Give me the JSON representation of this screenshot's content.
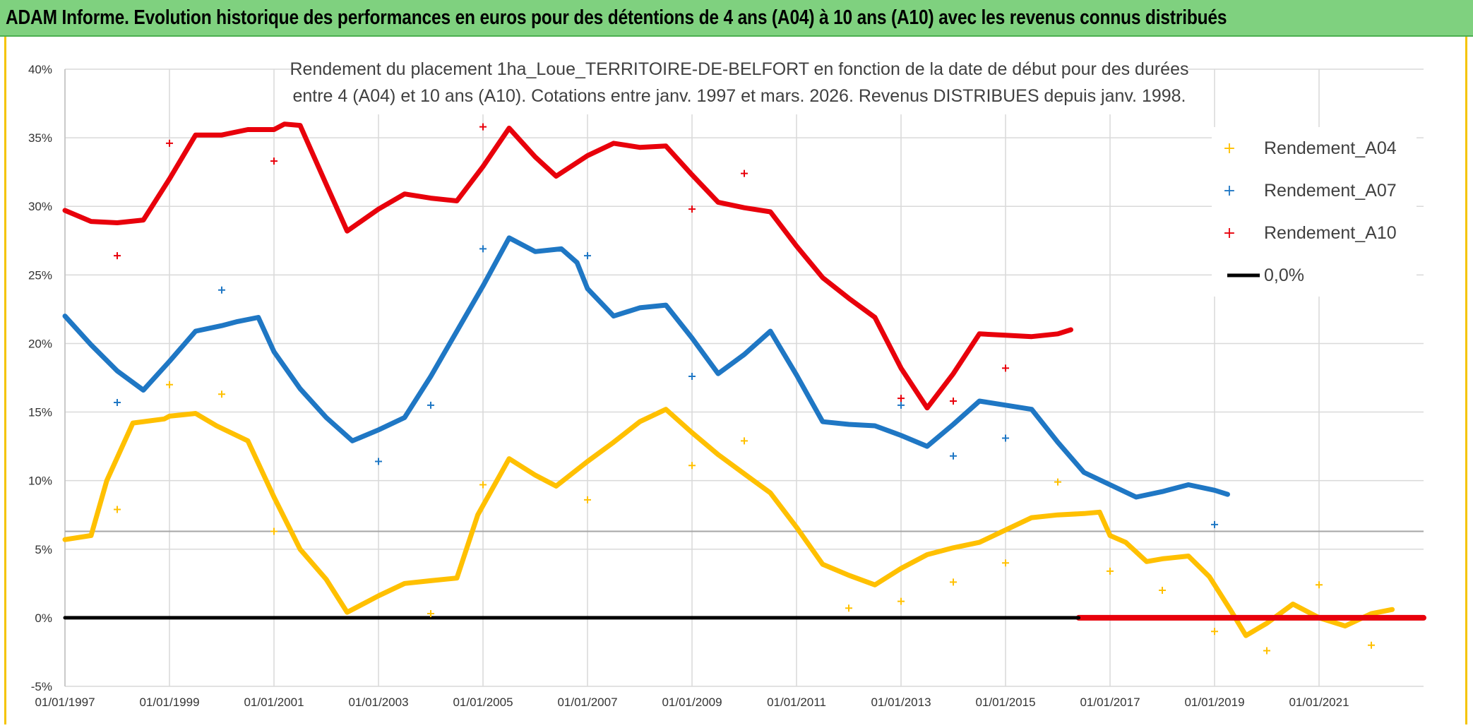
{
  "header": {
    "title": "ADAM Informe. Evolution historique des performances en euros pour des détentions de 4 ans (A04) à 10 ans (A10) avec les revenus connus distribués"
  },
  "colors": {
    "banner": "#7fd17f",
    "a04": "#FFC000",
    "a07": "#1F77C4",
    "a10": "#E8000B",
    "zero": "#000000",
    "grid": "#d9d9d9"
  },
  "chart_data": {
    "type": "line",
    "subtitle_line1": "Rendement du placement 1ha_Loue_TERRITOIRE-DE-BELFORT en fonction de la date de début pour des durées",
    "subtitle_line2": "entre 4 (A04) et 10 ans (A10). Cotations entre janv. 1997 et mars. 2026. Revenus DISTRIBUES depuis janv. 1998.",
    "ylim": [
      -5,
      40
    ],
    "xlim": [
      1997.0,
      2023.0
    ],
    "y_ticks": [
      "-5%",
      "0%",
      "5%",
      "10%",
      "15%",
      "20%",
      "25%",
      "30%",
      "35%",
      "40%"
    ],
    "y_tick_values": [
      -5,
      0,
      5,
      10,
      15,
      20,
      25,
      30,
      35,
      40
    ],
    "x_ticks": [
      "01/01/1997",
      "01/01/1999",
      "01/01/2001",
      "01/01/2003",
      "01/01/2005",
      "01/01/2007",
      "01/01/2009",
      "01/01/2011",
      "01/01/2013",
      "01/01/2015",
      "01/01/2017",
      "01/01/2019",
      "01/01/2021"
    ],
    "x_tick_values": [
      1997,
      1999,
      2001,
      2003,
      2005,
      2007,
      2009,
      2011,
      2013,
      2015,
      2017,
      2019,
      2021
    ],
    "reference_line_value": 6.3,
    "legend": [
      "Rendement_A04",
      "Rendement_A07",
      "Rendement_A10",
      "0,0%"
    ],
    "series": [
      {
        "name": "Rendement_A04",
        "points": [
          [
            1997.0,
            5.7
          ],
          [
            1997.5,
            6.0
          ],
          [
            1997.8,
            10.0
          ],
          [
            1998.3,
            14.2
          ],
          [
            1998.9,
            14.5
          ],
          [
            1999.0,
            14.7
          ],
          [
            1999.5,
            14.9
          ],
          [
            1999.9,
            14.0
          ],
          [
            2000.5,
            12.9
          ],
          [
            2001.0,
            8.8
          ],
          [
            2001.5,
            5.0
          ],
          [
            2002.0,
            2.8
          ],
          [
            2002.4,
            0.4
          ],
          [
            2002.8,
            1.2
          ],
          [
            2003.0,
            1.6
          ],
          [
            2003.5,
            2.5
          ],
          [
            2004.0,
            2.7
          ],
          [
            2004.5,
            2.9
          ],
          [
            2004.9,
            7.5
          ],
          [
            2005.5,
            11.6
          ],
          [
            2006.0,
            10.4
          ],
          [
            2006.4,
            9.6
          ],
          [
            2007.0,
            11.4
          ],
          [
            2007.5,
            12.8
          ],
          [
            2008.0,
            14.3
          ],
          [
            2008.5,
            15.2
          ],
          [
            2009.0,
            13.5
          ],
          [
            2009.5,
            11.9
          ],
          [
            2010.0,
            10.5
          ],
          [
            2010.5,
            9.1
          ],
          [
            2011.0,
            6.6
          ],
          [
            2011.5,
            3.9
          ],
          [
            2012.0,
            3.1
          ],
          [
            2012.5,
            2.4
          ],
          [
            2013.0,
            3.6
          ],
          [
            2013.5,
            4.6
          ],
          [
            2014.0,
            5.1
          ],
          [
            2014.5,
            5.5
          ],
          [
            2015.0,
            6.4
          ],
          [
            2015.5,
            7.3
          ],
          [
            2016.0,
            7.5
          ],
          [
            2016.5,
            7.6
          ],
          [
            2016.8,
            7.7
          ],
          [
            2017.0,
            6.0
          ],
          [
            2017.3,
            5.5
          ],
          [
            2017.7,
            4.1
          ],
          [
            2018.0,
            4.3
          ],
          [
            2018.5,
            4.5
          ],
          [
            2018.9,
            3.0
          ],
          [
            2019.3,
            0.6
          ],
          [
            2019.6,
            -1.3
          ],
          [
            2020.0,
            -0.4
          ],
          [
            2020.5,
            1.0
          ],
          [
            2021.0,
            0.0
          ],
          [
            2021.5,
            -0.6
          ],
          [
            2022.0,
            0.3
          ],
          [
            2022.4,
            0.6
          ]
        ]
      },
      {
        "name": "Rendement_A07",
        "points": [
          [
            1997.0,
            22.0
          ],
          [
            1997.5,
            19.9
          ],
          [
            1998.0,
            18.0
          ],
          [
            1998.5,
            16.6
          ],
          [
            1999.0,
            18.7
          ],
          [
            1999.5,
            20.9
          ],
          [
            2000.0,
            21.3
          ],
          [
            2000.3,
            21.6
          ],
          [
            2000.7,
            21.9
          ],
          [
            2001.0,
            19.4
          ],
          [
            2001.5,
            16.7
          ],
          [
            2002.0,
            14.6
          ],
          [
            2002.5,
            12.9
          ],
          [
            2003.0,
            13.7
          ],
          [
            2003.5,
            14.6
          ],
          [
            2004.0,
            17.6
          ],
          [
            2004.5,
            20.9
          ],
          [
            2005.0,
            24.2
          ],
          [
            2005.5,
            27.7
          ],
          [
            2006.0,
            26.7
          ],
          [
            2006.5,
            26.9
          ],
          [
            2006.8,
            25.9
          ],
          [
            2007.0,
            24.0
          ],
          [
            2007.5,
            22.0
          ],
          [
            2008.0,
            22.6
          ],
          [
            2008.5,
            22.8
          ],
          [
            2009.0,
            20.4
          ],
          [
            2009.5,
            17.8
          ],
          [
            2010.0,
            19.2
          ],
          [
            2010.5,
            20.9
          ],
          [
            2011.0,
            17.7
          ],
          [
            2011.5,
            14.3
          ],
          [
            2012.0,
            14.1
          ],
          [
            2012.5,
            14.0
          ],
          [
            2013.0,
            13.3
          ],
          [
            2013.5,
            12.5
          ],
          [
            2014.0,
            14.1
          ],
          [
            2014.5,
            15.8
          ],
          [
            2015.0,
            15.5
          ],
          [
            2015.5,
            15.2
          ],
          [
            2016.0,
            12.8
          ],
          [
            2016.5,
            10.6
          ],
          [
            2017.0,
            9.7
          ],
          [
            2017.5,
            8.8
          ],
          [
            2018.0,
            9.2
          ],
          [
            2018.5,
            9.7
          ],
          [
            2019.0,
            9.3
          ],
          [
            2019.25,
            9.0
          ]
        ]
      },
      {
        "name": "Rendement_A10",
        "points": [
          [
            1997.0,
            29.7
          ],
          [
            1997.5,
            28.9
          ],
          [
            1998.0,
            28.8
          ],
          [
            1998.5,
            29.0
          ],
          [
            1999.0,
            32.0
          ],
          [
            1999.5,
            35.2
          ],
          [
            2000.0,
            35.2
          ],
          [
            2000.5,
            35.6
          ],
          [
            2001.0,
            35.6
          ],
          [
            2001.2,
            36.0
          ],
          [
            2001.5,
            35.9
          ],
          [
            2002.0,
            31.6
          ],
          [
            2002.4,
            28.2
          ],
          [
            2003.0,
            29.8
          ],
          [
            2003.5,
            30.9
          ],
          [
            2004.0,
            30.6
          ],
          [
            2004.5,
            30.4
          ],
          [
            2005.0,
            32.9
          ],
          [
            2005.5,
            35.7
          ],
          [
            2006.0,
            33.6
          ],
          [
            2006.4,
            32.2
          ],
          [
            2007.0,
            33.7
          ],
          [
            2007.5,
            34.6
          ],
          [
            2008.0,
            34.3
          ],
          [
            2008.5,
            34.4
          ],
          [
            2009.0,
            32.3
          ],
          [
            2009.5,
            30.3
          ],
          [
            2010.0,
            29.9
          ],
          [
            2010.5,
            29.6
          ],
          [
            2011.0,
            27.1
          ],
          [
            2011.5,
            24.8
          ],
          [
            2012.0,
            23.3
          ],
          [
            2012.5,
            21.9
          ],
          [
            2013.0,
            18.2
          ],
          [
            2013.5,
            15.3
          ],
          [
            2014.0,
            17.8
          ],
          [
            2014.5,
            20.7
          ],
          [
            2015.0,
            20.6
          ],
          [
            2015.5,
            20.5
          ],
          [
            2016.0,
            20.7
          ],
          [
            2016.25,
            21.0
          ]
        ]
      },
      {
        "name": "Rendement_A10_zero",
        "points": [
          [
            2016.4,
            0.0
          ],
          [
            2023.0,
            0.0
          ]
        ]
      },
      {
        "name": "0,0%",
        "points": [
          [
            1997.0,
            0.0
          ],
          [
            2016.4,
            0.0
          ]
        ]
      }
    ],
    "scatter_markers": [
      {
        "series": "Rendement_A04",
        "points": [
          [
            1998.0,
            7.9
          ],
          [
            1999.0,
            17.0
          ],
          [
            2000.0,
            16.3
          ],
          [
            2001.0,
            6.3
          ],
          [
            2004.0,
            0.3
          ],
          [
            2005.0,
            9.7
          ],
          [
            2007.0,
            8.6
          ],
          [
            2009.0,
            11.1
          ],
          [
            2010.0,
            12.9
          ],
          [
            2012.0,
            0.7
          ],
          [
            2013.0,
            1.2
          ],
          [
            2014.0,
            2.6
          ],
          [
            2015.0,
            4.0
          ],
          [
            2016.0,
            9.9
          ],
          [
            2017.0,
            3.4
          ],
          [
            2018.0,
            2.0
          ],
          [
            2019.0,
            -1.0
          ],
          [
            2020.0,
            -2.4
          ],
          [
            2021.0,
            2.4
          ],
          [
            2022.0,
            -2.0
          ]
        ]
      },
      {
        "series": "Rendement_A07",
        "points": [
          [
            1998.0,
            15.7
          ],
          [
            2000.0,
            23.9
          ],
          [
            2003.0,
            11.4
          ],
          [
            2004.0,
            15.5
          ],
          [
            2005.0,
            26.9
          ],
          [
            2007.0,
            26.4
          ],
          [
            2009.0,
            17.6
          ],
          [
            2013.0,
            15.5
          ],
          [
            2014.0,
            11.8
          ],
          [
            2015.0,
            13.1
          ],
          [
            2019.0,
            6.8
          ]
        ]
      },
      {
        "series": "Rendement_A10",
        "points": [
          [
            1998.0,
            26.4
          ],
          [
            1999.0,
            34.6
          ],
          [
            2001.0,
            33.3
          ],
          [
            2005.0,
            35.8
          ],
          [
            2009.0,
            29.8
          ],
          [
            2010.0,
            32.4
          ],
          [
            2013.0,
            16.0
          ],
          [
            2014.0,
            15.8
          ],
          [
            2015.0,
            18.2
          ]
        ]
      }
    ]
  }
}
